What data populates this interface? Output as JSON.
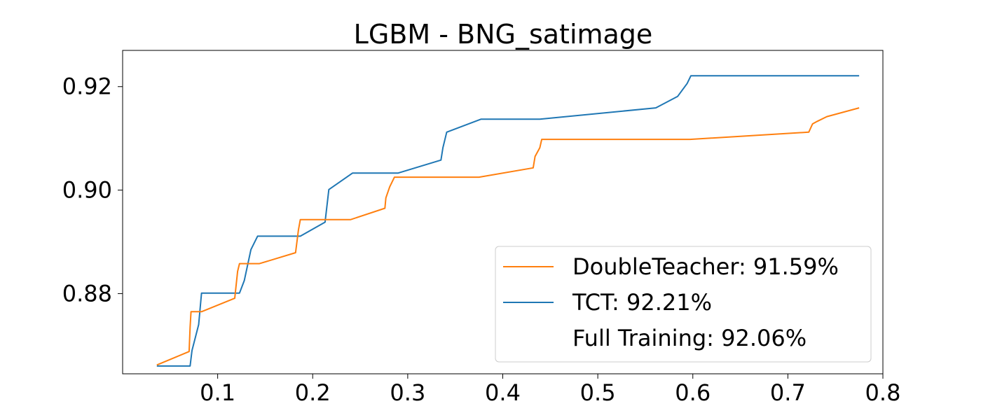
{
  "chart_data": {
    "type": "line",
    "title": "LGBM - BNG_satimage",
    "xlabel": "",
    "ylabel": "",
    "xlim": [
      0.0,
      0.8
    ],
    "ylim": [
      0.8645,
      0.927
    ],
    "xticks": [
      0.1,
      0.2,
      0.3,
      0.4,
      0.5,
      0.6,
      0.7,
      0.8
    ],
    "xtick_labels": [
      "0.1",
      "0.2",
      "0.3",
      "0.4",
      "0.5",
      "0.6",
      "0.7",
      "0.8"
    ],
    "yticks": [
      0.88,
      0.9,
      0.92
    ],
    "ytick_labels": [
      "0.88",
      "0.90",
      "0.92"
    ],
    "grid": false,
    "legend_position": "bottom-right",
    "series": [
      {
        "name": "DoubleTeacher: 91.59%",
        "color": "#ff7f0e",
        "x": [
          0.036,
          0.07,
          0.071,
          0.072,
          0.073,
          0.083,
          0.118,
          0.121,
          0.123,
          0.125,
          0.144,
          0.182,
          0.185,
          0.187,
          0.19,
          0.24,
          0.276,
          0.277,
          0.281,
          0.286,
          0.29,
          0.375,
          0.432,
          0.434,
          0.439,
          0.441,
          0.597,
          0.722,
          0.726,
          0.731,
          0.741,
          0.775
        ],
        "y": [
          0.8662,
          0.8688,
          0.8735,
          0.8765,
          0.8765,
          0.8765,
          0.8791,
          0.8843,
          0.8858,
          0.8858,
          0.8858,
          0.8879,
          0.8923,
          0.8943,
          0.8943,
          0.8943,
          0.8965,
          0.8985,
          0.9006,
          0.9025,
          0.9025,
          0.9025,
          0.9043,
          0.9065,
          0.9082,
          0.9098,
          0.9098,
          0.9112,
          0.9128,
          0.9133,
          0.9142,
          0.9159
        ]
      },
      {
        "name": "TCT: 92.21%",
        "color": "#1f77b4",
        "x": [
          0.036,
          0.071,
          0.073,
          0.08,
          0.083,
          0.123,
          0.128,
          0.135,
          0.142,
          0.187,
          0.213,
          0.217,
          0.242,
          0.29,
          0.335,
          0.337,
          0.341,
          0.377,
          0.439,
          0.561,
          0.584,
          0.594,
          0.598,
          0.775
        ],
        "y": [
          0.866,
          0.866,
          0.869,
          0.874,
          0.8801,
          0.8801,
          0.8825,
          0.8885,
          0.8911,
          0.8911,
          0.8938,
          0.9001,
          0.9033,
          0.9033,
          0.9058,
          0.9082,
          0.9112,
          0.9137,
          0.9137,
          0.9159,
          0.9181,
          0.9206,
          0.9221,
          0.9221
        ]
      },
      {
        "name": "Full Training: 92.06%",
        "color": "#ffffff",
        "x": [],
        "y": []
      }
    ]
  }
}
